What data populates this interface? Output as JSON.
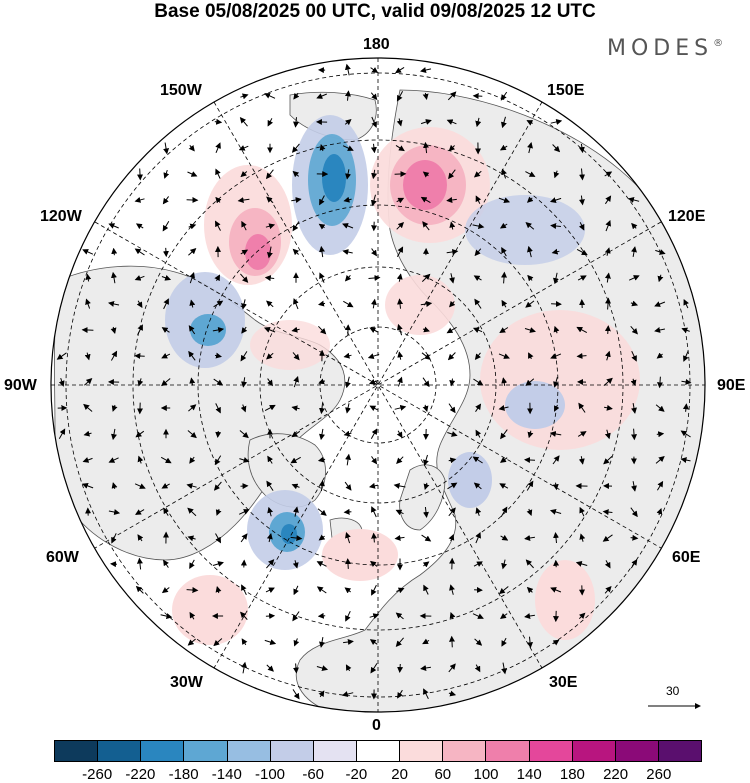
{
  "title": "Base 05/08/2025 00 UTC, valid 09/08/2025 12 UTC",
  "brand": "MODES",
  "brand_mark": "®",
  "longitude_labels": {
    "top": "180",
    "bottom": "0",
    "left": "90W",
    "right": "90E",
    "upper_left_1": "150W",
    "upper_left_2": "120W",
    "upper_right_1": "150E",
    "upper_right_2": "120E",
    "lower_left_1": "60W",
    "lower_left_2": "30W",
    "lower_right_1": "60E",
    "lower_right_2": "30E"
  },
  "reference_vector": {
    "value": "30"
  },
  "colorbar": {
    "colors": [
      "#0d3a5c",
      "#135f91",
      "#2a86bf",
      "#5ea7d3",
      "#97bee2",
      "#c3cde8",
      "#e4e2f2",
      "#ffffff",
      "#fbdcdc",
      "#f6b5c3",
      "#ef7fab",
      "#e4479b",
      "#b8157f",
      "#8b0a78",
      "#5a0f6e"
    ],
    "ticks": [
      "-260",
      "-220",
      "-180",
      "-140",
      "-100",
      "-60",
      "-20",
      "20",
      "60",
      "100",
      "140",
      "180",
      "220",
      "260"
    ]
  },
  "anomaly_colors": {
    "land": "#ececec",
    "ocean": "#ffffff"
  }
}
